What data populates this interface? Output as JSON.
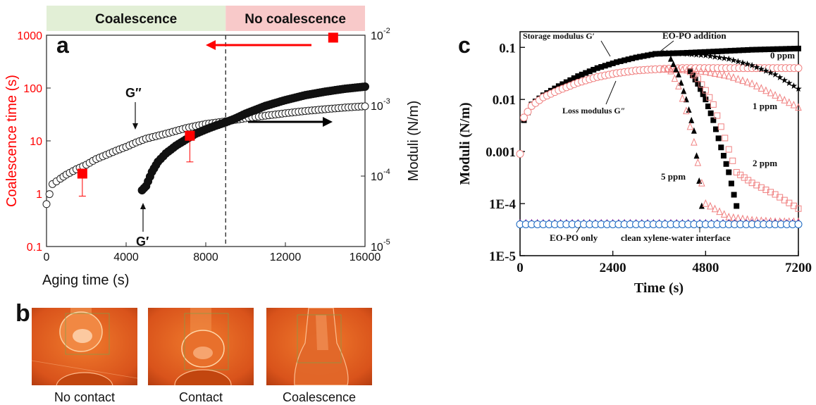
{
  "panel_labels": {
    "a": "a",
    "b": "b",
    "c": "c"
  },
  "chart_data": [
    {
      "type": "scatter",
      "panel": "a",
      "title": "",
      "xlabel": "Aging time (s)",
      "ylabel_left": "Coalescence time (s)",
      "ylabel_right": "Moduli (N/m)",
      "xlim": [
        0,
        16000
      ],
      "xticks": [
        0,
        4000,
        8000,
        12000,
        16000
      ],
      "xtick_labels": [
        "0",
        "4000",
        "8000",
        "12000",
        "16000"
      ],
      "ylim_left": [
        0.1,
        1000
      ],
      "yscale_left": "log",
      "yticks_left": [
        0.1,
        1,
        10,
        100,
        1000
      ],
      "ytick_labels_left": [
        "0.1",
        "1",
        "10",
        "100",
        "1000"
      ],
      "ylim_right": [
        1e-05,
        0.01
      ],
      "yscale_right": "log",
      "yticks_right": [
        1e-05,
        0.0001,
        0.001,
        0.01
      ],
      "ytick_labels_right": [
        "10",
        "10",
        "10",
        "10"
      ],
      "ytick_exponents_right": [
        "-5",
        "-4",
        "-3",
        "-2"
      ],
      "regions": [
        {
          "label": "Coalescence",
          "x": [
            0,
            9000
          ],
          "color": "#e2efd6"
        },
        {
          "label": "No coalescence",
          "x": [
            9000,
            16000
          ],
          "color": "#f8c9c9"
        }
      ],
      "boundary_x": 9000,
      "colors": {
        "left_axis": "#ff0000",
        "coalescence_marker": "#ff0000",
        "arrow_left": "#ff0000",
        "arrow_right": "#000000"
      },
      "series": [
        {
          "name": "G″",
          "axis": "right",
          "marker": "open-circle",
          "x": [
            0,
            300,
            700,
            1000,
            1500,
            2000,
            2500,
            3000,
            3500,
            4000,
            4500,
            5000,
            6000,
            7000,
            8000,
            9000,
            10000,
            11000,
            12000,
            13000,
            14000,
            15000,
            16000
          ],
          "y": [
            4e-05,
            7.7e-05,
            9.2e-05,
            0.000105,
            0.000125,
            0.000145,
            0.000175,
            0.0002,
            0.00023,
            0.00026,
            0.0003,
            0.00034,
            0.0004,
            0.00048,
            0.00055,
            0.0006,
            0.00066,
            0.00072,
            0.00078,
            0.00084,
            0.00089,
            0.00094,
            0.00098
          ]
        },
        {
          "name": "G′",
          "axis": "right",
          "marker": "filled-circle",
          "x": [
            4800,
            5000,
            5300,
            5600,
            6000,
            6500,
            7000,
            7500,
            8000,
            8500,
            9000,
            9500,
            10000,
            11000,
            12000,
            13000,
            14000,
            15000,
            16000
          ],
          "y": [
            6.3e-05,
            7.2e-05,
            0.000115,
            0.00016,
            0.00021,
            0.00027,
            0.00033,
            0.0004,
            0.00046,
            0.00052,
            0.00058,
            0.00066,
            0.00077,
            0.00099,
            0.0012,
            0.00141,
            0.00158,
            0.00174,
            0.00186
          ]
        },
        {
          "name": "Coalescence time",
          "axis": "left",
          "marker": "filled-square",
          "x": [
            1800,
            7200,
            14400
          ],
          "y": [
            2.4,
            12.5,
            900
          ],
          "error_low": [
            1.5,
            8.5,
            0
          ]
        }
      ],
      "annotations": [
        {
          "text": "G″",
          "target_x": 4900,
          "target_y": 0.00027
        },
        {
          "text": "G′",
          "target_x": 4900,
          "target_y": 5.8e-05
        }
      ]
    },
    {
      "type": "scatter",
      "panel": "c",
      "title": "",
      "xlabel": "Time (s)",
      "ylabel": "Moduli (N/m)",
      "xlim": [
        0,
        7200
      ],
      "xticks": [
        0,
        2400,
        4800,
        7200
      ],
      "xtick_labels": [
        "0",
        "2400",
        "4800",
        "7200"
      ],
      "ylim": [
        1e-05,
        0.2
      ],
      "yscale": "log",
      "yticks": [
        1e-05,
        0.0001,
        0.001,
        0.01,
        0.1
      ],
      "ytick_labels": [
        "1E-5",
        "1E-4",
        "0.001",
        "0.01",
        "0.1"
      ],
      "annotations": [
        {
          "text": "Storage modulus G′",
          "target_x": 2300,
          "target_y": 0.063
        },
        {
          "text": "EO-PO addition",
          "target_x": 3600,
          "target_y": 0.078
        },
        {
          "text": "0 ppm"
        },
        {
          "text": "1 ppm"
        },
        {
          "text": "2 ppm"
        },
        {
          "text": "5 ppm"
        },
        {
          "text": "Loss modulus G″",
          "target_x": 2600,
          "target_y": 0.036
        },
        {
          "text": "EO-PO only",
          "target_x": 1600,
          "target_y": 3.8e-05
        },
        {
          "text": "clean xylene-water interface",
          "target_x": 4650,
          "target_y": 3.8e-05
        }
      ],
      "series": [
        {
          "name": "",
          "kind": "storage",
          "marker": "filled-square",
          "color": "#000000",
          "x": [
            0,
            100,
            300,
            600,
            1000,
            1500,
            2000,
            2500,
            3000,
            3500,
            4200,
            5000,
            6000,
            7200
          ],
          "y": [
            0.0009,
            0.004,
            0.008,
            0.012,
            0.018,
            0.028,
            0.04,
            0.052,
            0.064,
            0.075,
            0.078,
            0.083,
            0.09,
            0.095
          ]
        },
        {
          "name": "",
          "kind": "loss",
          "marker": "open-circle",
          "color": "#f08080",
          "x": [
            0,
            100,
            300,
            600,
            1000,
            1500,
            2000,
            2500,
            3000,
            3500,
            4200,
            5000,
            6000,
            7200
          ],
          "y": [
            0.0009,
            0.0045,
            0.0075,
            0.011,
            0.015,
            0.021,
            0.027,
            0.032,
            0.036,
            0.038,
            0.04,
            0.04,
            0.04,
            0.04
          ]
        },
        {
          "name": "",
          "kind": "storage",
          "marker": "star",
          "color": "#000000",
          "x": [
            3700,
            4200,
            4800,
            5400,
            6000,
            6600,
            7200
          ],
          "y": [
            0.078,
            0.076,
            0.07,
            0.06,
            0.045,
            0.03,
            0.016
          ]
        },
        {
          "name": "",
          "kind": "loss",
          "marker": "open-triangle",
          "color": "#f08080",
          "x": [
            3700,
            4200,
            4800,
            5400,
            6000,
            6600,
            7200
          ],
          "y": [
            0.038,
            0.037,
            0.034,
            0.028,
            0.02,
            0.012,
            0.007
          ]
        },
        {
          "name": "",
          "kind": "storage",
          "marker": "filled-square",
          "color": "#000000",
          "x": [
            4400,
            4600,
            4800,
            5000,
            5200,
            5400,
            5600
          ],
          "y": [
            0.035,
            0.02,
            0.01,
            0.004,
            0.0012,
            0.0004,
            9e-05
          ]
        },
        {
          "name": "",
          "kind": "loss",
          "marker": "open-square",
          "color": "#f08080",
          "x": [
            4400,
            4600,
            4800,
            5000,
            5200,
            5400,
            5600,
            6000,
            6600,
            7200
          ],
          "y": [
            0.034,
            0.025,
            0.015,
            0.008,
            0.003,
            0.0011,
            0.0004,
            0.00025,
            0.00015,
            8e-05
          ]
        },
        {
          "name": "",
          "kind": "storage",
          "marker": "filled-triangle",
          "color": "#000000",
          "x": [
            3900,
            4100,
            4300,
            4500,
            4700
          ],
          "y": [
            0.06,
            0.03,
            0.01,
            0.0025,
            9e-05
          ]
        },
        {
          "name": "",
          "kind": "loss",
          "marker": "open-triangle",
          "color": "#f08080",
          "x": [
            3900,
            4100,
            4300,
            4500,
            4800,
            5400,
            6000,
            6600,
            7200
          ],
          "y": [
            0.035,
            0.018,
            0.006,
            0.0015,
            0.0001,
            5.5e-05,
            4.8e-05,
            4.5e-05,
            4.5e-05
          ]
        },
        {
          "name": "",
          "kind": "baseline",
          "marker": "open-triangle",
          "color": "#7b1fa2",
          "x": [
            0,
            600,
            1200,
            1800,
            2400,
            3000,
            3600,
            4200,
            4800,
            5400,
            6000,
            6600,
            7200
          ],
          "y": [
            4.2e-05,
            4.2e-05,
            4.2e-05,
            4.2e-05,
            4.2e-05,
            4.2e-05,
            4.2e-05,
            4.2e-05,
            4.2e-05,
            4.2e-05,
            4.2e-05,
            4.2e-05,
            4.2e-05
          ]
        },
        {
          "name": "",
          "kind": "baseline",
          "marker": "open-circle",
          "color": "#1565c0",
          "x": [
            0,
            600,
            1200,
            1800,
            2400,
            3000,
            3600,
            4200,
            4800,
            5400,
            6000,
            6600,
            7200
          ],
          "y": [
            4e-05,
            4e-05,
            4e-05,
            4e-05,
            4e-05,
            4e-05,
            4e-05,
            4e-05,
            4e-05,
            4e-05,
            4e-05,
            4e-05,
            4e-05
          ]
        }
      ]
    }
  ],
  "photos": [
    {
      "caption": "No contact",
      "state": "no-contact"
    },
    {
      "caption": "Contact",
      "state": "contact"
    },
    {
      "caption": "Coalescence",
      "state": "coalescence"
    }
  ],
  "colors": {
    "photo_background": "#e05a1a",
    "baseline_line": "#ff8c00"
  }
}
